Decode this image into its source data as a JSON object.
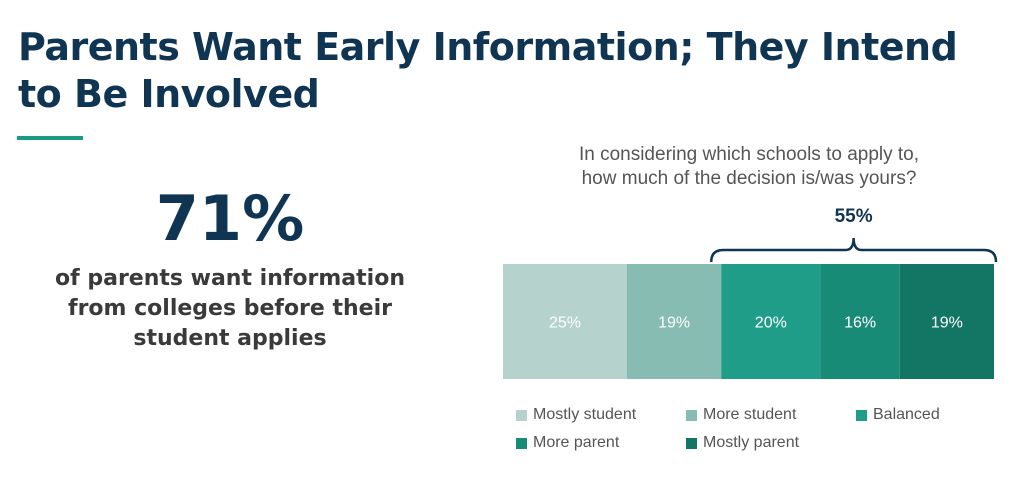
{
  "slide": {
    "title_line1": "Parents Want Early Information; They Intend",
    "title_line2": "to Be Involved",
    "stat_value": "71%",
    "stat_line1": "of parents want information",
    "stat_line2": "from colleges before their",
    "stat_line3": "student applies",
    "accent_color": "#1a9a86",
    "title_color": "#0f3553"
  },
  "chart_data": {
    "type": "bar",
    "orientation": "horizontal-stacked",
    "title_line1": "In considering which schools to apply to,",
    "title_line2": "how much of the decision is/was yours?",
    "series": [
      {
        "name": "Mostly student",
        "value": 25,
        "label": "25%",
        "color": "#b5d3cc"
      },
      {
        "name": "More student",
        "value": 19,
        "label": "19%",
        "color": "#86bcb1"
      },
      {
        "name": "Balanced",
        "value": 20,
        "label": "20%",
        "color": "#1f9d89"
      },
      {
        "name": "More parent",
        "value": 16,
        "label": "16%",
        "color": "#178b76"
      },
      {
        "name": "Mostly parent",
        "value": 19,
        "label": "19%",
        "color": "#137664"
      }
    ],
    "bracket": {
      "label": "55%",
      "from_series": 2,
      "to_series": 4
    },
    "legend_position": "bottom"
  }
}
